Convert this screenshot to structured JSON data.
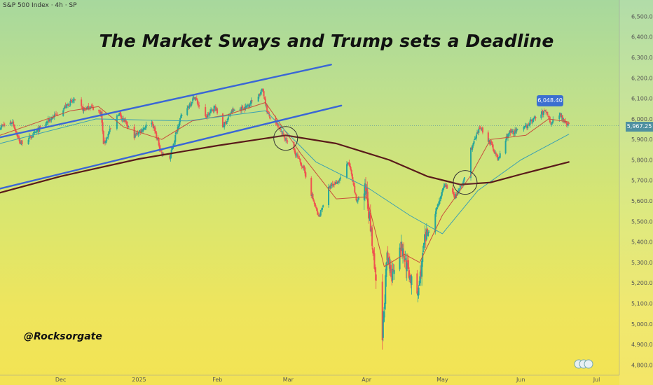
{
  "header": {
    "symbol": "S&P 500 Index · 4h · SP",
    "title": "The Market Sways and Trump sets a Deadline",
    "watermark": "@Rocksorgate",
    "highlight_price": "6,048.40",
    "last_price": "5,967.25"
  },
  "colors": {
    "up_candle": "#26a69a",
    "down_candle": "#ef5350",
    "ma_fast": "#c8503c",
    "ma_mid": "#3aa0b2",
    "ma_slow": "#5a1a1a",
    "channel": "#3a66d6",
    "circle": "#333333"
  },
  "chart_data": {
    "type": "candlestick",
    "title": "The Market Sways and Trump sets a Deadline",
    "interval": "4h",
    "ylim": [
      4750,
      6580
    ],
    "y_ticks": [
      4800,
      4900,
      5000,
      5100,
      5200,
      5300,
      5400,
      5500,
      5600,
      5700,
      5800,
      5900,
      6000,
      6100,
      6200,
      6300,
      6400,
      6500
    ],
    "y_tick_labels": [
      "4,800.00",
      "4,900.00",
      "5,000.00",
      "5,100.00",
      "5,200.00",
      "5,300.00",
      "5,400.00",
      "5,500.00",
      "5,600.00",
      "5,700.00",
      "5,800.00",
      "5,900.00",
      "6,000.00",
      "6,100.00",
      "6,200.00",
      "6,300.00",
      "6,400.00",
      "6,500.00"
    ],
    "x_ticks": [
      "Dec",
      "2025",
      "Feb",
      "Mar",
      "Apr",
      "May",
      "Jun",
      "Jul"
    ],
    "x_tick_dates": [
      "2024-12-01",
      "2025-01-01",
      "2025-02-01",
      "2025-03-01",
      "2025-04-01",
      "2025-05-01",
      "2025-06-01",
      "2025-07-01"
    ],
    "xlim": [
      "2024-11-07",
      "2025-07-10"
    ],
    "price_path": [
      [
        "2024-11-07",
        5960
      ],
      [
        "2024-11-12",
        5985
      ],
      [
        "2024-11-15",
        5880
      ],
      [
        "2024-11-20",
        5920
      ],
      [
        "2024-11-26",
        5990
      ],
      [
        "2024-12-02",
        6050
      ],
      [
        "2024-12-06",
        6090
      ],
      [
        "2024-12-10",
        6045
      ],
      [
        "2024-12-13",
        6060
      ],
      [
        "2024-12-17",
        6030
      ],
      [
        "2024-12-18",
        5875
      ],
      [
        "2024-12-20",
        5930
      ],
      [
        "2024-12-24",
        6030
      ],
      [
        "2024-12-30",
        5915
      ],
      [
        "2025-01-06",
        5990
      ],
      [
        "2025-01-10",
        5830
      ],
      [
        "2025-01-13",
        5800
      ],
      [
        "2025-01-17",
        5995
      ],
      [
        "2025-01-23",
        6110
      ],
      [
        "2025-01-27",
        6000
      ],
      [
        "2025-01-31",
        6060
      ],
      [
        "2025-02-03",
        5960
      ],
      [
        "2025-02-07",
        6040
      ],
      [
        "2025-02-12",
        6055
      ],
      [
        "2025-02-19",
        6140
      ],
      [
        "2025-02-21",
        6020
      ],
      [
        "2025-02-25",
        5960
      ],
      [
        "2025-02-28",
        5900
      ],
      [
        "2025-03-04",
        5830
      ],
      [
        "2025-03-07",
        5760
      ],
      [
        "2025-03-10",
        5640
      ],
      [
        "2025-03-13",
        5520
      ],
      [
        "2025-03-17",
        5660
      ],
      [
        "2025-03-21",
        5700
      ],
      [
        "2025-03-25",
        5790
      ],
      [
        "2025-03-28",
        5600
      ],
      [
        "2025-04-01",
        5660
      ],
      [
        "2025-04-03",
        5420
      ],
      [
        "2025-04-07",
        4870
      ],
      [
        "2025-04-09",
        5320
      ],
      [
        "2025-04-11",
        5240
      ],
      [
        "2025-04-14",
        5400
      ],
      [
        "2025-04-17",
        5280
      ],
      [
        "2025-04-21",
        5120
      ],
      [
        "2025-04-24",
        5400
      ],
      [
        "2025-04-28",
        5540
      ],
      [
        "2025-05-02",
        5680
      ],
      [
        "2025-05-06",
        5620
      ],
      [
        "2025-05-09",
        5680
      ],
      [
        "2025-05-12",
        5845
      ],
      [
        "2025-05-16",
        5960
      ],
      [
        "2025-05-21",
        5860
      ],
      [
        "2025-05-23",
        5800
      ],
      [
        "2025-05-27",
        5930
      ],
      [
        "2025-06-02",
        5950
      ],
      [
        "2025-06-06",
        6000
      ],
      [
        "2025-06-11",
        6040
      ],
      [
        "2025-06-13",
        5980
      ],
      [
        "2025-06-16",
        6030
      ],
      [
        "2025-06-20",
        5967
      ]
    ],
    "series": [
      {
        "type": "line",
        "points": [
          [
            "2024-11-07",
            5920
          ],
          [
            "2024-12-05",
            6040
          ],
          [
            "2024-12-16",
            6060
          ],
          [
            "2024-12-26",
            5960
          ],
          [
            "2025-01-10",
            5900
          ],
          [
            "2025-01-22",
            5990
          ],
          [
            "2025-02-05",
            6020
          ],
          [
            "2025-02-20",
            6080
          ],
          [
            "2025-03-06",
            5830
          ],
          [
            "2025-03-20",
            5610
          ],
          [
            "2025-04-01",
            5620
          ],
          [
            "2025-04-08",
            5280
          ],
          [
            "2025-04-16",
            5340
          ],
          [
            "2025-04-22",
            5300
          ],
          [
            "2025-05-01",
            5530
          ],
          [
            "2025-05-12",
            5720
          ],
          [
            "2025-05-20",
            5900
          ],
          [
            "2025-06-03",
            5920
          ],
          [
            "2025-06-12",
            6000
          ],
          [
            "2025-06-20",
            5985
          ]
        ]
      },
      {
        "type": "line",
        "points": [
          [
            "2024-11-07",
            5880
          ],
          [
            "2024-12-15",
            6000
          ],
          [
            "2025-01-20",
            5990
          ],
          [
            "2025-02-20",
            6040
          ],
          [
            "2025-03-12",
            5790
          ],
          [
            "2025-04-02",
            5660
          ],
          [
            "2025-04-18",
            5530
          ],
          [
            "2025-05-01",
            5440
          ],
          [
            "2025-05-15",
            5650
          ],
          [
            "2025-06-01",
            5800
          ],
          [
            "2025-06-20",
            5925
          ]
        ]
      },
      {
        "type": "line",
        "points": [
          [
            "2024-11-07",
            5640
          ],
          [
            "2024-12-01",
            5720
          ],
          [
            "2025-01-01",
            5805
          ],
          [
            "2025-02-01",
            5870
          ],
          [
            "2025-02-28",
            5920
          ],
          [
            "2025-03-20",
            5880
          ],
          [
            "2025-04-10",
            5800
          ],
          [
            "2025-04-25",
            5720
          ],
          [
            "2025-05-08",
            5680
          ],
          [
            "2025-05-20",
            5690
          ],
          [
            "2025-06-01",
            5730
          ],
          [
            "2025-06-20",
            5790
          ]
        ]
      },
      {
        "type": "line",
        "points": [
          [
            "2024-11-07",
            5910
          ],
          [
            "2025-03-18",
            6265
          ]
        ]
      },
      {
        "type": "line",
        "points": [
          [
            "2024-11-07",
            5660
          ],
          [
            "2025-03-22",
            6065
          ]
        ]
      }
    ],
    "annotations": [
      {
        "type": "circle",
        "x": "2025-02-28",
        "y": 5905
      },
      {
        "type": "circle",
        "x": "2025-05-10",
        "y": 5690
      },
      {
        "type": "label",
        "x": "2025-06-08",
        "y": 6048.4,
        "text": "6,048.40"
      },
      {
        "type": "label",
        "x": "2025-06-20",
        "y": 5967.25,
        "text": "5,967.25"
      }
    ]
  }
}
